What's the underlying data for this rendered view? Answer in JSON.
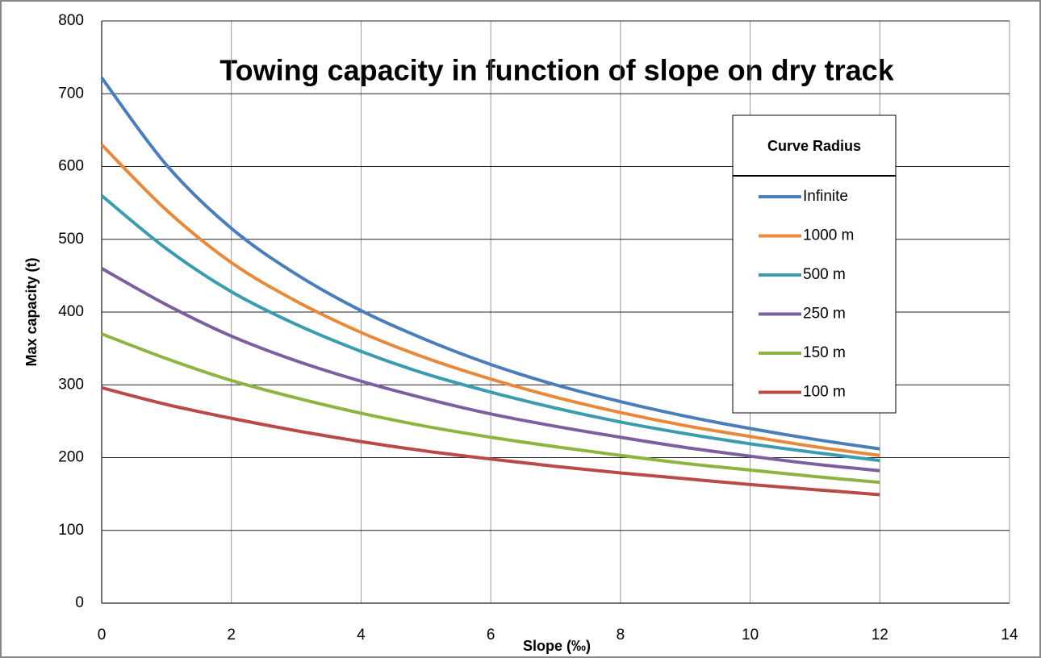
{
  "chart_data": {
    "type": "line",
    "title": "Towing capacity in function of slope on dry track",
    "x_label": "Slope (‰)",
    "y_label": "Max capacity (t)",
    "legend_title": "Curve Radius",
    "x": [
      0,
      1,
      2,
      3,
      4,
      5,
      6,
      7,
      8,
      9,
      10,
      11,
      12
    ],
    "series": [
      {
        "name": "Infinite",
        "color": "#4a7ebb",
        "values": [
          722,
          602,
          515,
          452,
          402,
          362,
          328,
          300,
          277,
          257,
          240,
          225,
          212
        ]
      },
      {
        "name": "1000 m",
        "color": "#e8883a",
        "values": [
          630,
          540,
          468,
          415,
          372,
          337,
          308,
          283,
          262,
          244,
          229,
          215,
          203
        ]
      },
      {
        "name": "500 m",
        "color": "#3b9cb0",
        "values": [
          560,
          487,
          428,
          383,
          346,
          315,
          290,
          268,
          249,
          233,
          219,
          207,
          196
        ]
      },
      {
        "name": "250 m",
        "color": "#7d5fa0",
        "values": [
          460,
          410,
          367,
          333,
          305,
          281,
          260,
          243,
          228,
          214,
          202,
          191,
          182
        ]
      },
      {
        "name": "150 m",
        "color": "#8db441",
        "values": [
          370,
          336,
          306,
          282,
          261,
          243,
          228,
          215,
          203,
          192,
          183,
          174,
          166
        ]
      },
      {
        "name": "100 m",
        "color": "#b84a47",
        "values": [
          296,
          273,
          254,
          237,
          222,
          209,
          198,
          188,
          179,
          171,
          163,
          156,
          149
        ]
      }
    ],
    "xlim": [
      0,
      14
    ],
    "xticks": [
      0,
      2,
      4,
      6,
      8,
      10,
      12,
      14
    ],
    "ylim": [
      0,
      800
    ],
    "yticks": [
      0,
      100,
      200,
      300,
      400,
      500,
      600,
      700,
      800
    ],
    "grid": true
  }
}
